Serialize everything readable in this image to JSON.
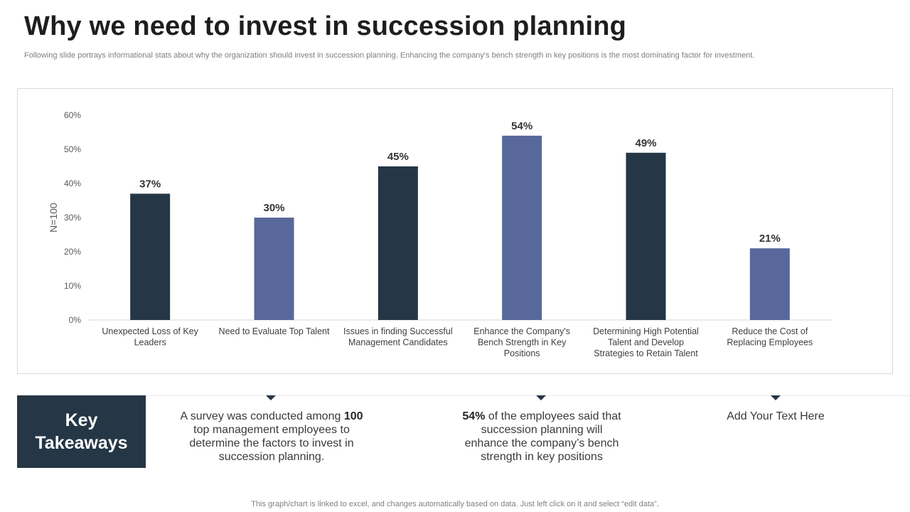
{
  "slide": {
    "title": "Why we need to invest in succession planning",
    "subtitle": "Following slide portrays informational stats about why the organization should invest in succession planning. Enhancing the company's bench strength in key positions is the most dominating factor for investment.",
    "footnote": "This graph/chart is linked to excel, and changes automatically based on data. Just left click on it and select “edit data”."
  },
  "chart_data": {
    "type": "bar",
    "title": "",
    "xlabel": "",
    "ylabel": "N=100",
    "ylim": [
      0,
      60
    ],
    "yticks": [
      "0%",
      "10%",
      "20%",
      "30%",
      "40%",
      "50%",
      "60%"
    ],
    "categories": [
      [
        "Unexpected Loss of Key",
        "Leaders"
      ],
      [
        "Need to Evaluate Top Talent"
      ],
      [
        "Issues in finding Successful",
        "Management Candidates"
      ],
      [
        "Enhance the Company's",
        "Bench Strength in Key",
        "Positions"
      ],
      [
        "Determining High Potential",
        "Talent and Develop",
        "Strategies to Retain Talent"
      ],
      [
        "Reduce the Cost of",
        "Replacing Employees"
      ]
    ],
    "values": [
      37,
      30,
      45,
      54,
      49,
      21
    ],
    "data_labels": [
      "37%",
      "30%",
      "45%",
      "54%",
      "49%",
      "21%"
    ],
    "bar_colors": [
      "#253646",
      "#58689a",
      "#253646",
      "#58689a",
      "#253646",
      "#58689a"
    ],
    "grid": false
  },
  "takeaways": {
    "heading": "Key Takeaways",
    "items": [
      {
        "pre": "A survey was conducted among ",
        "bold": "100",
        "post": " top management employees to determine the factors to invest in succession planning."
      },
      {
        "pre": "",
        "bold": "54%",
        "post": " of the employees said that succession planning will enhance the company’s bench strength in key positions"
      },
      {
        "pre": "",
        "bold": "",
        "post": "Add Your Text Here"
      }
    ]
  },
  "colors": {
    "dark": "#253646",
    "accent": "#58689a"
  }
}
